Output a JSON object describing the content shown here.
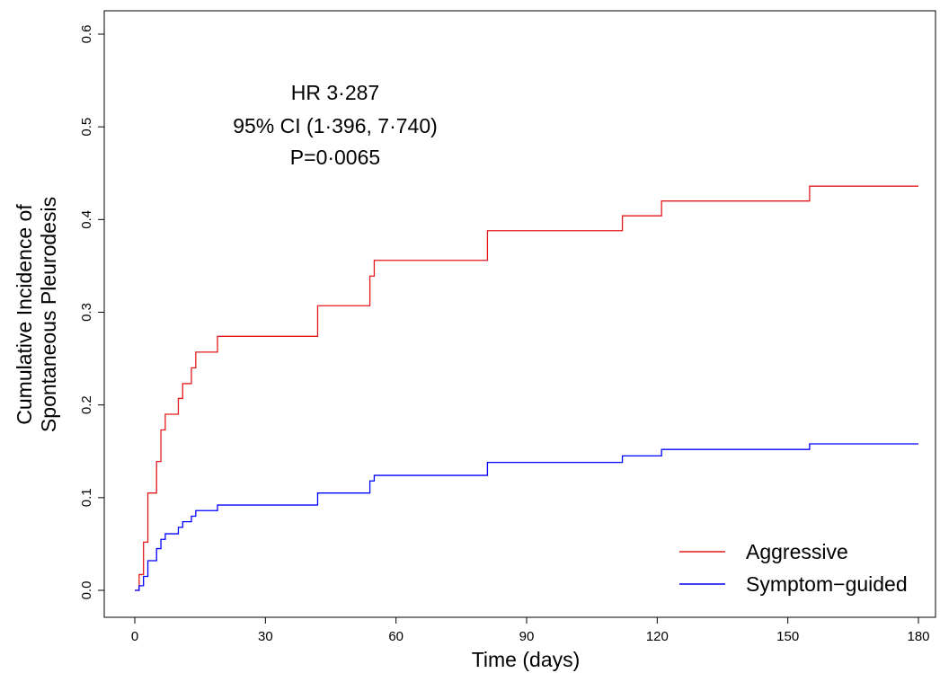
{
  "chart_data": {
    "type": "line",
    "step": true,
    "xlabel": "Time (days)",
    "ylabel_line1": "Cumulative Incidence of",
    "ylabel_line2": "Spontaneous Pleurodesis",
    "xlim": [
      0,
      180
    ],
    "ylim": [
      0,
      0.6
    ],
    "x_ticks": [
      "0",
      "30",
      "60",
      "90",
      "120",
      "150",
      "180"
    ],
    "y_ticks": [
      "0.0",
      "0.1",
      "0.2",
      "0.3",
      "0.4",
      "0.5",
      "0.6"
    ],
    "annotation": {
      "line1": "HR 3·287",
      "line2": "95% CI (1·396, 7·740)",
      "line3": "P=0·0065"
    },
    "legend_position": "bottom-right",
    "grid": false,
    "series": [
      {
        "name": "Aggressive",
        "color": "#e31a1c",
        "x": [
          0,
          1,
          2,
          3,
          5,
          6,
          7,
          10,
          11,
          13,
          14,
          19,
          42,
          54,
          55,
          81,
          112,
          121,
          155,
          180
        ],
        "y": [
          0,
          0.017,
          0.052,
          0.105,
          0.139,
          0.173,
          0.19,
          0.207,
          0.223,
          0.24,
          0.257,
          0.274,
          0.307,
          0.339,
          0.356,
          0.388,
          0.404,
          0.42,
          0.436,
          0.436
        ]
      },
      {
        "name": "Symptom−guided",
        "color": "#0000ff",
        "x": [
          0,
          1,
          2,
          3,
          5,
          6,
          7,
          10,
          11,
          13,
          14,
          19,
          42,
          54,
          55,
          81,
          112,
          121,
          155,
          180
        ],
        "y": [
          0,
          0.005,
          0.015,
          0.032,
          0.045,
          0.055,
          0.061,
          0.068,
          0.074,
          0.08,
          0.086,
          0.092,
          0.105,
          0.118,
          0.124,
          0.138,
          0.145,
          0.152,
          0.158,
          0.158
        ]
      }
    ]
  }
}
